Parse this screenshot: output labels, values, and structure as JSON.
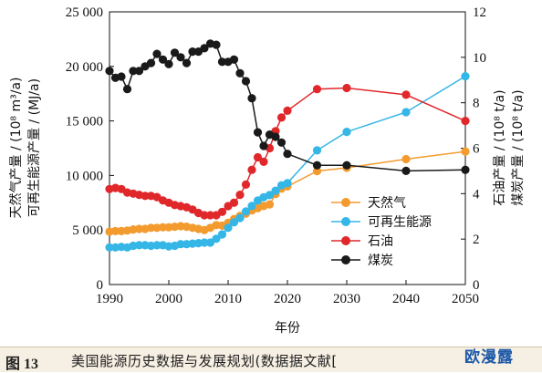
{
  "chart_data": {
    "type": "line",
    "title": "",
    "xlabel": "年份",
    "ylabel_left_lines": [
      "天然气产量 / (10⁸ m³/a)",
      "可再生能源产量 / (MJ/a)"
    ],
    "ylabel_right_lines": [
      "石油产量 / (10⁸ t/a)",
      "煤炭产量 / (10⁸ t/a)"
    ],
    "xlim": [
      1990,
      2050
    ],
    "ylim_left": [
      0,
      25000
    ],
    "ylim_right": [
      0,
      12
    ],
    "x_ticks": [
      "1990",
      "2000",
      "2010",
      "2020",
      "2030",
      "2040",
      "2050"
    ],
    "y_left_ticks": [
      "0",
      "5 000",
      "10 000",
      "15 000",
      "20 000",
      "25 000"
    ],
    "y_right_ticks": [
      "0",
      "2",
      "4",
      "6",
      "8",
      "10",
      "12"
    ],
    "grid": false,
    "legend_position": "center-right",
    "series": [
      {
        "name": "天然气",
        "axis": "left",
        "color": "#f39b2f",
        "x": [
          1990,
          1991,
          1992,
          1993,
          1994,
          1995,
          1996,
          1997,
          1998,
          1999,
          2000,
          2001,
          2002,
          2003,
          2004,
          2005,
          2006,
          2007,
          2008,
          2009,
          2010,
          2011,
          2012,
          2013,
          2014,
          2015,
          2016,
          2017,
          2018,
          2019,
          2020,
          2025,
          2030,
          2040,
          2050
        ],
        "y": [
          4850,
          4900,
          4900,
          4950,
          5050,
          5100,
          5100,
          5200,
          5200,
          5250,
          5250,
          5300,
          5350,
          5300,
          5200,
          5100,
          5000,
          5200,
          5450,
          5400,
          5650,
          6000,
          6300,
          6500,
          6800,
          7000,
          7200,
          7350,
          8300,
          8800,
          9000,
          10400,
          10700,
          11500,
          12200
        ]
      },
      {
        "name": "可再生能源",
        "axis": "left",
        "color": "#34b6e6",
        "x": [
          1990,
          1991,
          1992,
          1993,
          1994,
          1995,
          1996,
          1997,
          1998,
          1999,
          2000,
          2001,
          2002,
          2003,
          2004,
          2005,
          2006,
          2007,
          2008,
          2009,
          2010,
          2011,
          2012,
          2013,
          2014,
          2015,
          2016,
          2017,
          2018,
          2019,
          2020,
          2025,
          2030,
          2040,
          2050
        ],
        "y": [
          3400,
          3400,
          3450,
          3400,
          3550,
          3600,
          3600,
          3550,
          3600,
          3600,
          3500,
          3550,
          3700,
          3700,
          3750,
          3800,
          3850,
          3850,
          4200,
          4600,
          5200,
          5700,
          6100,
          6700,
          7200,
          7700,
          8000,
          8200,
          8600,
          9100,
          9300,
          12300,
          14000,
          15800,
          19100
        ]
      },
      {
        "name": "石油",
        "axis": "right",
        "color": "#e0282b",
        "x": [
          1990,
          1991,
          1992,
          1993,
          1994,
          1995,
          1996,
          1997,
          1998,
          1999,
          2000,
          2001,
          2002,
          2003,
          2004,
          2005,
          2006,
          2007,
          2008,
          2009,
          2010,
          2011,
          2012,
          2013,
          2014,
          2015,
          2016,
          2017,
          2018,
          2019,
          2020,
          2025,
          2030,
          2040,
          2050
        ],
        "y": [
          4.2,
          4.25,
          4.2,
          4.05,
          4.0,
          3.95,
          3.9,
          3.9,
          3.85,
          3.7,
          3.6,
          3.5,
          3.45,
          3.4,
          3.3,
          3.15,
          3.05,
          3.05,
          3.05,
          3.2,
          3.45,
          3.6,
          3.95,
          4.4,
          5.05,
          5.6,
          5.4,
          6.0,
          6.75,
          7.35,
          7.65,
          8.6,
          8.65,
          8.35,
          7.2
        ]
      },
      {
        "name": "煤炭",
        "axis": "right",
        "color": "#1a1a1a",
        "x": [
          1990,
          1991,
          1992,
          1993,
          1994,
          1995,
          1996,
          1997,
          1998,
          1999,
          2000,
          2001,
          2002,
          2003,
          2004,
          2005,
          2006,
          2007,
          2008,
          2009,
          2010,
          2011,
          2012,
          2013,
          2014,
          2015,
          2016,
          2017,
          2018,
          2019,
          2020,
          2025,
          2030,
          2040,
          2050
        ],
        "y": [
          9.4,
          9.1,
          9.15,
          8.6,
          9.4,
          9.4,
          9.6,
          9.75,
          10.15,
          9.9,
          9.7,
          10.2,
          10.0,
          9.75,
          10.25,
          10.25,
          10.4,
          10.6,
          10.55,
          9.8,
          9.8,
          9.9,
          9.3,
          8.95,
          8.2,
          6.7,
          6.1,
          6.6,
          6.5,
          6.25,
          5.75,
          5.25,
          5.25,
          5.0,
          5.05
        ]
      }
    ]
  },
  "caption": {
    "figure_number": "图 13",
    "text": "美国能源历史数据与发展规划(数据据文献["
  },
  "watermark": "欧漫露"
}
